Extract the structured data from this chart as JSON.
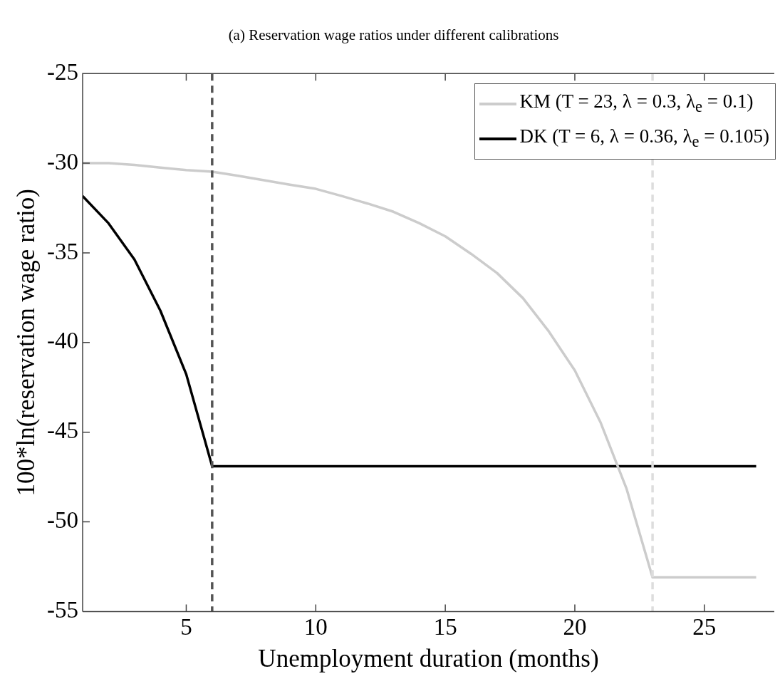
{
  "chart_data": {
    "type": "line",
    "title": "(a) Reservation wage ratios under different calibrations",
    "xlabel": "Unemployment duration (months)",
    "ylabel": "100*ln(reservation wage ratio)",
    "x": [
      1,
      2,
      3,
      4,
      5,
      6,
      7,
      8,
      9,
      10,
      11,
      12,
      13,
      14,
      15,
      16,
      17,
      18,
      19,
      20,
      21,
      22,
      23,
      24,
      25,
      26,
      27
    ],
    "series": [
      {
        "name": "KM (T = 23, λ = 0.3, λ$_{e}$ = 0.1)",
        "color": "#cccccc",
        "values": [
          -30.0,
          -30.0,
          -30.1,
          -30.25,
          -30.38,
          -30.47,
          -30.7,
          -30.95,
          -31.2,
          -31.43,
          -31.83,
          -32.25,
          -32.71,
          -33.35,
          -34.08,
          -35.06,
          -36.13,
          -37.53,
          -39.39,
          -41.56,
          -44.48,
          -48.17,
          -53.1,
          -53.1,
          -53.1,
          -53.1,
          -53.1
        ]
      },
      {
        "name": "DK (T = 6, λ = 0.36, λ$_{e}$ = 0.105)",
        "color": "#000000",
        "values": [
          -31.83,
          -33.35,
          -35.37,
          -38.22,
          -41.77,
          -46.9,
          -46.9,
          -46.9,
          -46.9,
          -46.9,
          -46.9,
          -46.9,
          -46.9,
          -46.9,
          -46.9,
          -46.9,
          -46.9,
          -46.9,
          -46.9,
          -46.9,
          -46.9,
          -46.9,
          -46.9,
          -46.9,
          -46.9,
          -46.9,
          -46.9
        ]
      }
    ],
    "ref_lines": [
      {
        "axis": "x",
        "value": 6,
        "color": "#555555",
        "line_style": "dashed"
      },
      {
        "axis": "x",
        "value": 23,
        "color": "#dddddd",
        "line_style": "dashed"
      }
    ],
    "xlim": [
      1,
      27.7
    ],
    "xticks": [
      5,
      10,
      15,
      20,
      25
    ],
    "ylim": [
      -55,
      -25
    ],
    "yticks": [
      -55,
      -50,
      -45,
      -40,
      -35,
      -30,
      -25
    ],
    "grid": false,
    "legend": "top right",
    "marker": "none",
    "line_style": "solid"
  }
}
